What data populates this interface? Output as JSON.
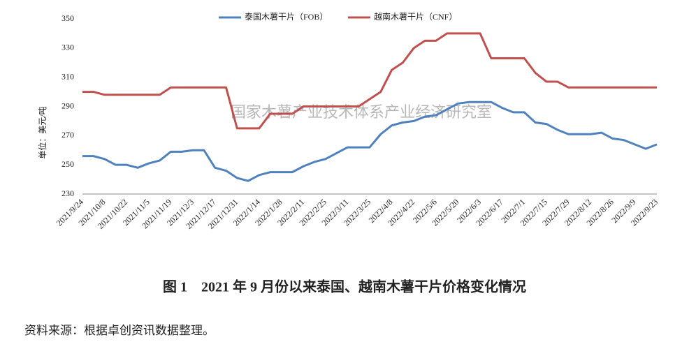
{
  "chart_data": {
    "type": "line",
    "title": "图 1　2021 年 9 月份以来泰国、越南木薯干片价格变化情况",
    "y_label": "单位：美元/吨",
    "watermark": "国家木薯产业技术体系产业经济研究室",
    "legend": "top",
    "grid": false,
    "categories": [
      "2021/9/24",
      null,
      "2021/10/8",
      null,
      "2021/10/22",
      null,
      "2021/11/5",
      null,
      "2021/11/19",
      null,
      "2021/12/3",
      null,
      "2021/12/17",
      null,
      "2021/12/31",
      null,
      "2022/1/14",
      null,
      "2022/1/28",
      null,
      "2022/2/11",
      null,
      "2022/2/25",
      null,
      "2022/3/11",
      null,
      "2022/3/25",
      null,
      "2022/4/8",
      null,
      "2022/4/22",
      null,
      "2022/5/6",
      null,
      "2022/5/20",
      null,
      "2022/6/3",
      null,
      "2022/6/17",
      null,
      "2022/7/1",
      null,
      "2022/7/15",
      null,
      "2022/7/29",
      null,
      "2022/8/12",
      null,
      "2022/8/26",
      null,
      "2022/9/9",
      null,
      "2022/9/23"
    ],
    "series": [
      {
        "name": "泰国木薯干片（FOB）",
        "color": "#4f81bd",
        "values": [
          256,
          256,
          254,
          250,
          250,
          248,
          251,
          253,
          259,
          259,
          260,
          260,
          248,
          246,
          241,
          239,
          243,
          245,
          245,
          245,
          249,
          252,
          254,
          258,
          262,
          262,
          262,
          271,
          277,
          279,
          280,
          283,
          284,
          288,
          292,
          293,
          293,
          293,
          289,
          286,
          286,
          279,
          278,
          274,
          271,
          271,
          271,
          272,
          268,
          267,
          264,
          261,
          264
        ]
      },
      {
        "name": "越南木薯干片（CNF）",
        "color": "#c0504d",
        "values": [
          300,
          300,
          298,
          298,
          298,
          298,
          298,
          298,
          303,
          303,
          303,
          303,
          303,
          303,
          275,
          275,
          275,
          285,
          285,
          285,
          290,
          290,
          290,
          290,
          290,
          290,
          295,
          300,
          315,
          320,
          330,
          335,
          335,
          340,
          340,
          340,
          340,
          323,
          323,
          323,
          323,
          313,
          307,
          307,
          303,
          303,
          303,
          303,
          303,
          303,
          303,
          303,
          303
        ]
      }
    ],
    "ylim": [
      230,
      350
    ],
    "yticks": [
      230,
      250,
      270,
      290,
      310,
      330,
      350
    ]
  },
  "source": "资料来源：根据卓创资讯数据整理。"
}
